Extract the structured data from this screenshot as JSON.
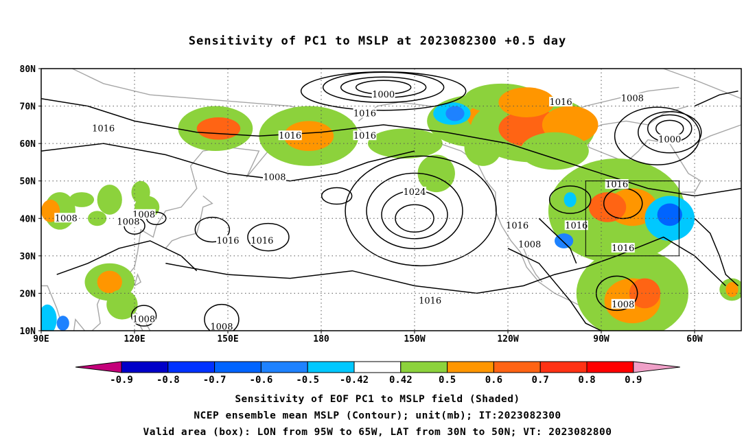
{
  "title": "Sensitivity of PC1 to MSLP at 2023082300 +0.5 day",
  "lat_labels": [
    "80N",
    "70N",
    "60N",
    "50N",
    "40N",
    "30N",
    "20N",
    "10N"
  ],
  "lon_labels": [
    "90E",
    "120E",
    "150E",
    "180",
    "150W",
    "120W",
    "90W",
    "60W"
  ],
  "contour_labels": [
    {
      "text": "1000",
      "lon": -160,
      "lat": 73
    },
    {
      "text": "1016",
      "lon": -166,
      "lat": 68
    },
    {
      "text": "1016",
      "lon": -103,
      "lat": 71
    },
    {
      "text": "1008",
      "lon": -80,
      "lat": 72
    },
    {
      "text": "1000",
      "lon": -68,
      "lat": 61
    },
    {
      "text": "1016",
      "lon": 110,
      "lat": 64
    },
    {
      "text": "1016",
      "lon": 170,
      "lat": 62
    },
    {
      "text": "1016",
      "lon": -166,
      "lat": 62
    },
    {
      "text": "1016",
      "lon": -85,
      "lat": 49
    },
    {
      "text": "1008",
      "lon": 165,
      "lat": 51
    },
    {
      "text": "1024",
      "lon": -150,
      "lat": 47
    },
    {
      "text": "1008",
      "lon": 123,
      "lat": 41
    },
    {
      "text": "1008",
      "lon": 98,
      "lat": 40
    },
    {
      "text": "1008",
      "lon": 118,
      "lat": 39
    },
    {
      "text": "1016",
      "lon": 150,
      "lat": 34
    },
    {
      "text": "1016",
      "lon": 161,
      "lat": 34
    },
    {
      "text": "1016",
      "lon": -117,
      "lat": 38
    },
    {
      "text": "1016",
      "lon": -98,
      "lat": 38
    },
    {
      "text": "1008",
      "lon": -113,
      "lat": 33
    },
    {
      "text": "1016",
      "lon": -83,
      "lat": 32
    },
    {
      "text": "1016",
      "lon": -145,
      "lat": 18
    },
    {
      "text": "1008",
      "lon": -83,
      "lat": 17
    },
    {
      "text": "1008",
      "lon": 123,
      "lat": 13
    },
    {
      "text": "1008",
      "lon": 148,
      "lat": 11
    }
  ],
  "valid_box": {
    "lon_min": -95,
    "lon_max": -65,
    "lat_min": 30,
    "lat_max": 50
  },
  "colorbar": {
    "ticks": [
      "-0.9",
      "-0.8",
      "-0.7",
      "-0.6",
      "-0.5",
      "-0.42",
      "0.42",
      "0.5",
      "0.6",
      "0.7",
      "0.8",
      "0.9"
    ],
    "colors": [
      "#c4007a",
      "#0000c8",
      "#0032ff",
      "#0064ff",
      "#1e82ff",
      "#00c8ff",
      "#ffffff",
      "#8cd23c",
      "#ff9600",
      "#ff6414",
      "#ff3214",
      "#ff0000",
      "#f0a0c8"
    ]
  },
  "caption": {
    "line1": "Sensitivity of EOF PC1 to MSLP field (Shaded)",
    "line2": "NCEP ensemble mean MSLP (Contour); unit(mb); IT:2023082300",
    "line3": "Valid area (box): LON from 95W to 65W, LAT from 30N to 50N; VT: 2023082800"
  }
}
